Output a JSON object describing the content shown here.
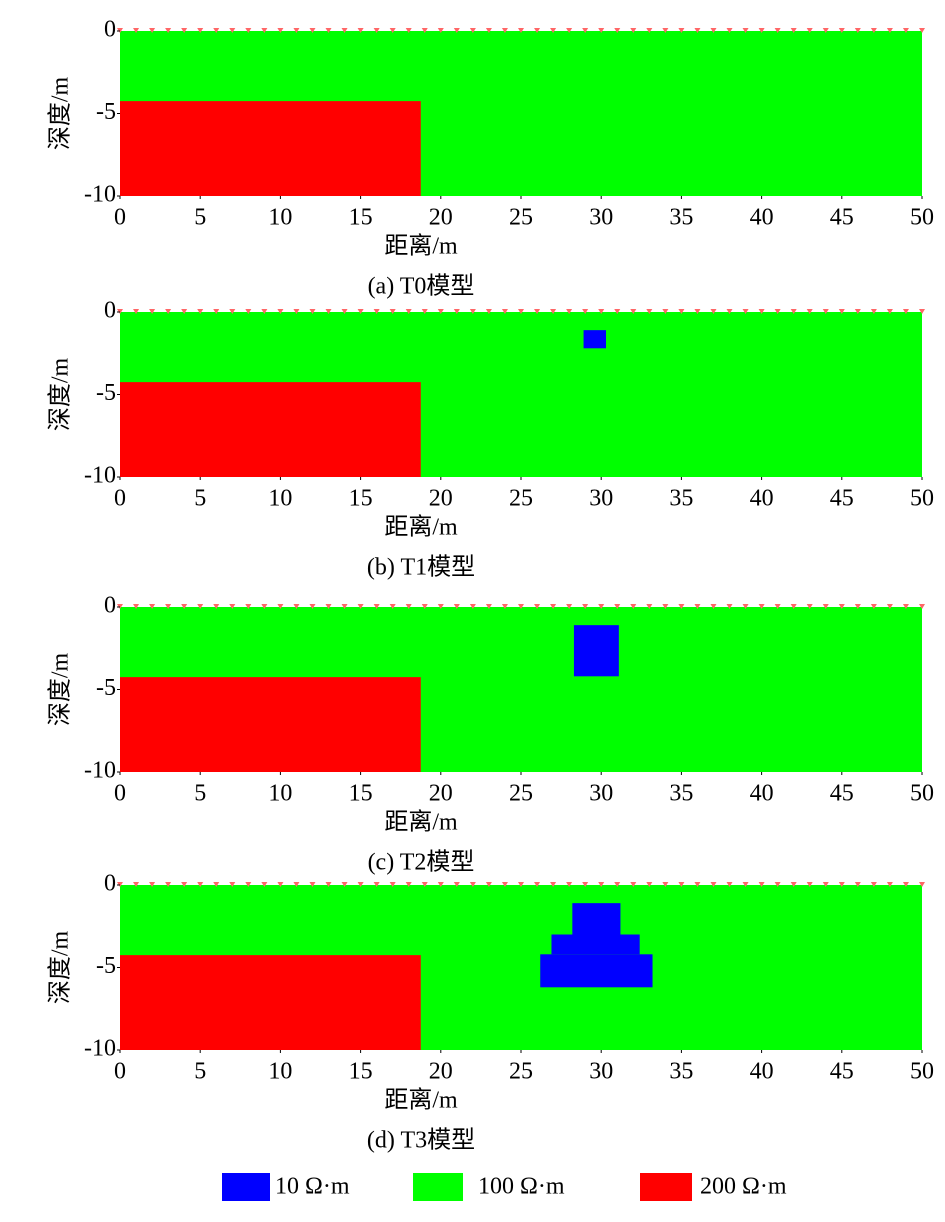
{
  "chart_data": [
    {
      "type": "block-model",
      "caption": "(a) T0模型",
      "xlabel": "距离/m",
      "ylabel": "深度/m",
      "background": "#00ff00",
      "xlim": [
        0,
        50
      ],
      "ylim": [
        -10,
        0
      ],
      "xticks": [
        0,
        5,
        10,
        15,
        20,
        25,
        30,
        35,
        40,
        45,
        50
      ],
      "yticks": [
        0,
        -5,
        -10
      ],
      "blocks": [
        {
          "x": [
            0,
            18.75
          ],
          "y": [
            -10,
            -4.25
          ],
          "color": "#ff0000"
        }
      ]
    },
    {
      "type": "block-model",
      "caption": "(b) T1模型",
      "xlabel": "距离/m",
      "ylabel": "深度/m",
      "background": "#00ff00",
      "xlim": [
        0,
        50
      ],
      "ylim": [
        -10,
        0
      ],
      "xticks": [
        0,
        5,
        10,
        15,
        20,
        25,
        30,
        35,
        40,
        45,
        50
      ],
      "yticks": [
        0,
        -5,
        -10
      ],
      "blocks": [
        {
          "x": [
            0,
            18.75
          ],
          "y": [
            -10,
            -4.25
          ],
          "color": "#ff0000"
        },
        {
          "x": [
            28.9,
            30.3
          ],
          "y": [
            -2.2,
            -1.1
          ],
          "color": "#0000ff"
        }
      ]
    },
    {
      "type": "block-model",
      "caption": "(c) T2模型",
      "xlabel": "距离/m",
      "ylabel": "深度/m",
      "background": "#00ff00",
      "xlim": [
        0,
        50
      ],
      "ylim": [
        -10,
        0
      ],
      "xticks": [
        0,
        5,
        10,
        15,
        20,
        25,
        30,
        35,
        40,
        45,
        50
      ],
      "yticks": [
        0,
        -5,
        -10
      ],
      "blocks": [
        {
          "x": [
            0,
            18.75
          ],
          "y": [
            -10,
            -4.25
          ],
          "color": "#ff0000"
        },
        {
          "x": [
            28.3,
            31.1
          ],
          "y": [
            -4.2,
            -1.1
          ],
          "color": "#0000ff"
        }
      ]
    },
    {
      "type": "block-model",
      "caption": "(d) T3模型",
      "xlabel": "距离/m",
      "ylabel": "深度/m",
      "background": "#00ff00",
      "xlim": [
        0,
        50
      ],
      "ylim": [
        -10,
        0
      ],
      "xticks": [
        0,
        5,
        10,
        15,
        20,
        25,
        30,
        35,
        40,
        45,
        50
      ],
      "yticks": [
        0,
        -5,
        -10
      ],
      "blocks": [
        {
          "x": [
            0,
            18.75
          ],
          "y": [
            -10,
            -4.25
          ],
          "color": "#ff0000"
        },
        {
          "x": [
            28.2,
            31.2
          ],
          "y": [
            -3,
            -1.1
          ],
          "color": "#0000ff"
        },
        {
          "x": [
            26.9,
            32.4
          ],
          "y": [
            -4.2,
            -3
          ],
          "color": "#0000ff"
        },
        {
          "x": [
            26.2,
            33.2
          ],
          "y": [
            -6.2,
            -4.2
          ],
          "color": "#0000ff"
        }
      ]
    }
  ],
  "legend": [
    {
      "label": "10 Ω·m",
      "color": "#0000ff"
    },
    {
      "label": "100 Ω·m",
      "color": "#00ff00"
    },
    {
      "label": "200 Ω·m",
      "color": "#ff0000"
    }
  ]
}
